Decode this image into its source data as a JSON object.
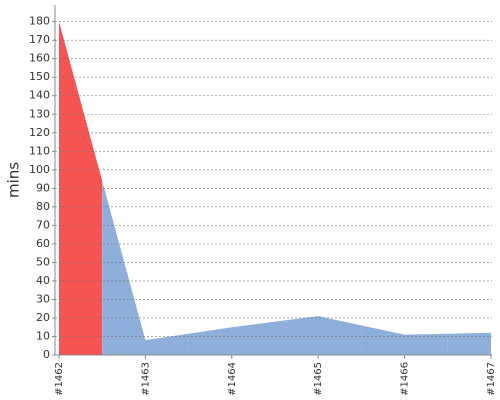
{
  "chart_data": {
    "type": "area",
    "y_label": "mins",
    "categories": [
      "#1462",
      "#1463",
      "#1464",
      "#1465",
      "#1466",
      "#1467"
    ],
    "values": [
      180,
      8,
      15,
      21,
      11,
      12
    ],
    "colors": [
      "#f65353",
      "#8eafda",
      "#8eafda",
      "#8eafda",
      "#8eafda",
      "#8eafda"
    ],
    "ylim": [
      0,
      189
    ],
    "yticks": [
      0,
      10,
      20,
      30,
      40,
      50,
      60,
      70,
      80,
      90,
      100,
      110,
      120,
      130,
      140,
      150,
      160,
      170,
      180
    ],
    "grid": true
  }
}
